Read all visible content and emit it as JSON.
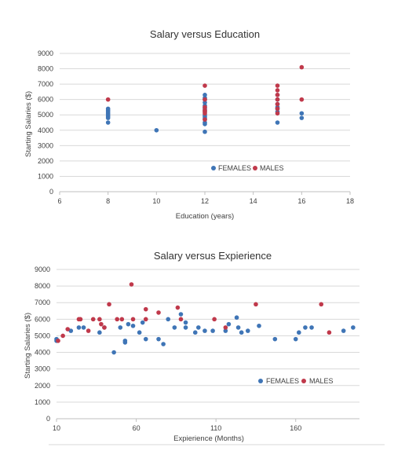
{
  "chart_data": [
    {
      "type": "scatter",
      "title": "Salary versus Education",
      "xlabel": "Education (years)",
      "ylabel": "Starting Salaries ($)",
      "xlim": [
        6,
        18
      ],
      "ylim": [
        0,
        9000
      ],
      "x_ticks": [
        "6",
        "8",
        "10",
        "12",
        "14",
        "16",
        "18"
      ],
      "y_ticks": [
        "0",
        "1000",
        "2000",
        "3000",
        "4000",
        "5000",
        "6000",
        "7000",
        "8000",
        "9000"
      ],
      "grid": "horizontal",
      "legend_position": "bottom-right",
      "series": [
        {
          "name": "FEMALES",
          "color": "#3f75b6",
          "points": [
            [
              8,
              4500
            ],
            [
              8,
              4800
            ],
            [
              8,
              4900
            ],
            [
              8,
              5000
            ],
            [
              8,
              5100
            ],
            [
              8,
              5200
            ],
            [
              8,
              5300
            ],
            [
              8,
              5400
            ],
            [
              10,
              4000
            ],
            [
              12,
              3900
            ],
            [
              12,
              4400
            ],
            [
              12,
              4500
            ],
            [
              12,
              4700
            ],
            [
              12,
              4800
            ],
            [
              12,
              4900
            ],
            [
              12,
              5000
            ],
            [
              12,
              5200
            ],
            [
              12,
              5300
            ],
            [
              12,
              5400
            ],
            [
              12,
              5500
            ],
            [
              12,
              5600
            ],
            [
              12,
              5800
            ],
            [
              12,
              6000
            ],
            [
              12,
              6100
            ],
            [
              12,
              6300
            ],
            [
              15,
              4500
            ],
            [
              15,
              5200
            ],
            [
              15,
              5400
            ],
            [
              15,
              5500
            ],
            [
              15,
              5700
            ],
            [
              15,
              6000
            ],
            [
              15,
              6300
            ],
            [
              16,
              4800
            ],
            [
              16,
              5100
            ]
          ]
        },
        {
          "name": "MALES",
          "color": "#c0394b",
          "points": [
            [
              8,
              6000
            ],
            [
              12,
              4700
            ],
            [
              12,
              5100
            ],
            [
              12,
              5200
            ],
            [
              12,
              5300
            ],
            [
              12,
              5500
            ],
            [
              12,
              6000
            ],
            [
              12,
              6900
            ],
            [
              15,
              5100
            ],
            [
              15,
              5400
            ],
            [
              15,
              5700
            ],
            [
              15,
              6000
            ],
            [
              15,
              6300
            ],
            [
              15,
              6600
            ],
            [
              15,
              6900
            ],
            [
              16,
              6000
            ],
            [
              16,
              8100
            ]
          ]
        }
      ]
    },
    {
      "type": "scatter",
      "title": "Salary versus Expierience",
      "xlabel": "Expierience (Months)",
      "ylabel": "Starting Salaries ($)",
      "xlim": [
        10,
        200
      ],
      "ylim": [
        0,
        9000
      ],
      "x_ticks": [
        "10",
        "60",
        "110",
        "160"
      ],
      "y_ticks": [
        "0",
        "1000",
        "2000",
        "3000",
        "4000",
        "5000",
        "6000",
        "7000",
        "8000",
        "9000"
      ],
      "grid": "horizontal",
      "legend_position": "bottom-right",
      "series": [
        {
          "name": "FEMALES",
          "color": "#3f75b6",
          "points": [
            [
              10,
              4700
            ],
            [
              10,
              4800
            ],
            [
              19,
              5300
            ],
            [
              24,
              5500
            ],
            [
              27,
              5500
            ],
            [
              37,
              5200
            ],
            [
              40,
              5500
            ],
            [
              46,
              4000
            ],
            [
              50,
              5500
            ],
            [
              53,
              4600
            ],
            [
              53,
              4700
            ],
            [
              55,
              5700
            ],
            [
              58,
              5600
            ],
            [
              62,
              5200
            ],
            [
              64,
              5800
            ],
            [
              66,
              4800
            ],
            [
              74,
              4800
            ],
            [
              77,
              4500
            ],
            [
              80,
              6000
            ],
            [
              84,
              5500
            ],
            [
              88,
              6300
            ],
            [
              91,
              5500
            ],
            [
              91,
              5800
            ],
            [
              97,
              5200
            ],
            [
              99,
              5500
            ],
            [
              103,
              5300
            ],
            [
              108,
              5300
            ],
            [
              116,
              5300
            ],
            [
              118,
              5700
            ],
            [
              123,
              6100
            ],
            [
              124,
              5500
            ],
            [
              126,
              5200
            ],
            [
              130,
              5300
            ],
            [
              137,
              5600
            ],
            [
              147,
              4800
            ],
            [
              160,
              4800
            ],
            [
              162,
              5200
            ],
            [
              166,
              5500
            ],
            [
              170,
              5500
            ],
            [
              190,
              5300
            ],
            [
              196,
              5500
            ]
          ]
        },
        {
          "name": "MALES",
          "color": "#c0394b",
          "points": [
            [
              11,
              4700
            ],
            [
              14,
              5000
            ],
            [
              17,
              5400
            ],
            [
              24,
              6000
            ],
            [
              25,
              6000
            ],
            [
              30,
              5300
            ],
            [
              33,
              6000
            ],
            [
              37,
              6000
            ],
            [
              38,
              5700
            ],
            [
              40,
              5500
            ],
            [
              43,
              6900
            ],
            [
              48,
              6000
            ],
            [
              51,
              6000
            ],
            [
              57,
              8100
            ],
            [
              58,
              6000
            ],
            [
              66,
              6000
            ],
            [
              66,
              6600
            ],
            [
              74,
              6400
            ],
            [
              86,
              6700
            ],
            [
              88,
              6000
            ],
            [
              109,
              6000
            ],
            [
              116,
              5500
            ],
            [
              135,
              6900
            ],
            [
              176,
              6900
            ],
            [
              181,
              5200
            ]
          ]
        }
      ]
    }
  ]
}
